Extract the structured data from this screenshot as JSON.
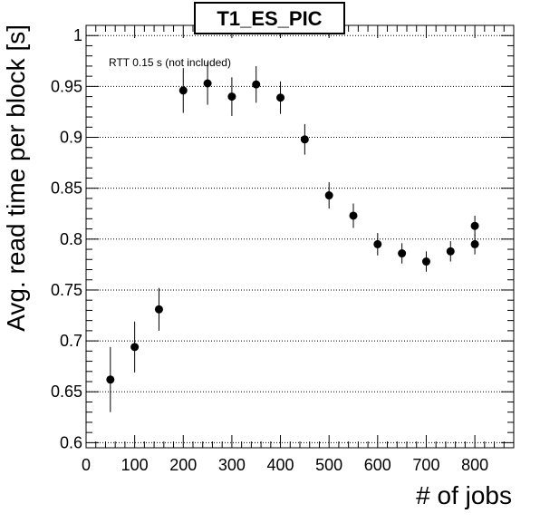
{
  "chart_data": {
    "type": "scatter",
    "title": "T1_ES_PIC",
    "xlabel": "# of jobs",
    "ylabel": "Avg. read time per block [s]",
    "annotation": "RTT 0.15 s (not included)",
    "xlim": [
      0,
      880
    ],
    "ylim": [
      0.595,
      1.01
    ],
    "grid": "horizontal-dotted",
    "x_ticks": [
      0,
      100,
      200,
      300,
      400,
      500,
      600,
      700,
      800
    ],
    "x_tick_labels": [
      "0",
      "100",
      "200",
      "300",
      "400",
      "500",
      "600",
      "700",
      "800"
    ],
    "y_ticks": [
      0.6,
      0.65,
      0.7,
      0.75,
      0.8,
      0.85,
      0.9,
      0.95,
      1.0
    ],
    "y_tick_labels": [
      "0.6",
      "0.65",
      "0.7",
      "0.75",
      "0.8",
      "0.85",
      "0.9",
      "0.95",
      "1"
    ],
    "points": [
      {
        "x": 50,
        "y": 0.662,
        "err_low": 0.032,
        "err_high": 0.032
      },
      {
        "x": 100,
        "y": 0.694,
        "err_low": 0.025,
        "err_high": 0.025
      },
      {
        "x": 150,
        "y": 0.731,
        "err_low": 0.021,
        "err_high": 0.021
      },
      {
        "x": 200,
        "y": 0.946,
        "err_low": 0.022,
        "err_high": 0.022
      },
      {
        "x": 250,
        "y": 0.953,
        "err_low": 0.021,
        "err_high": 0.021
      },
      {
        "x": 300,
        "y": 0.94,
        "err_low": 0.019,
        "err_high": 0.019
      },
      {
        "x": 350,
        "y": 0.952,
        "err_low": 0.018,
        "err_high": 0.018
      },
      {
        "x": 400,
        "y": 0.939,
        "err_low": 0.016,
        "err_high": 0.016
      },
      {
        "x": 450,
        "y": 0.898,
        "err_low": 0.015,
        "err_high": 0.015
      },
      {
        "x": 500,
        "y": 0.843,
        "err_low": 0.013,
        "err_high": 0.013
      },
      {
        "x": 550,
        "y": 0.823,
        "err_low": 0.012,
        "err_high": 0.012
      },
      {
        "x": 600,
        "y": 0.795,
        "err_low": 0.011,
        "err_high": 0.011
      },
      {
        "x": 650,
        "y": 0.786,
        "err_low": 0.01,
        "err_high": 0.01
      },
      {
        "x": 700,
        "y": 0.778,
        "err_low": 0.01,
        "err_high": 0.01
      },
      {
        "x": 750,
        "y": 0.788,
        "err_low": 0.01,
        "err_high": 0.01
      },
      {
        "x": 800,
        "y": 0.795,
        "err_low": 0.01,
        "err_high": 0.01
      },
      {
        "x": 800,
        "y": 0.813,
        "err_low": 0.01,
        "err_high": 0.01
      }
    ]
  },
  "colors": {
    "marker": "#000000",
    "axis": "#000000",
    "grid": "#000000",
    "background": "#ffffff"
  }
}
